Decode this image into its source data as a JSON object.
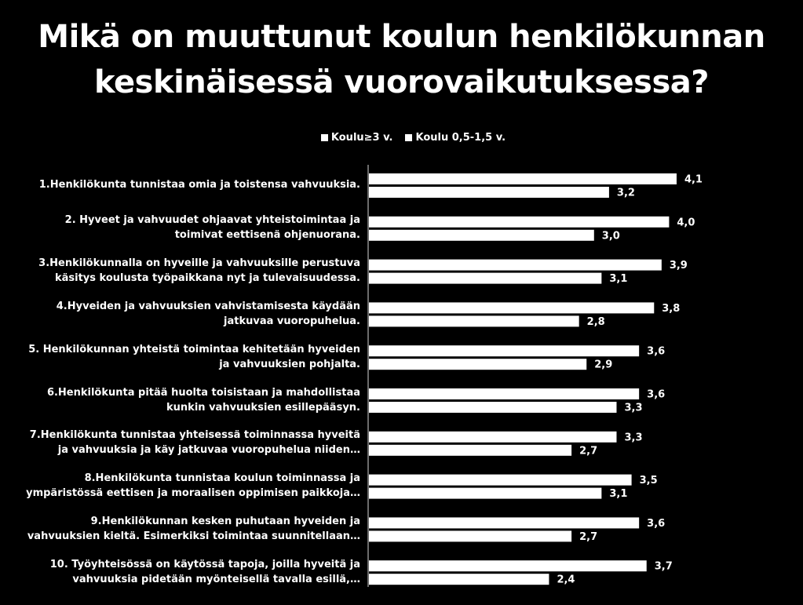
{
  "chart_data": {
    "type": "bar",
    "orientation": "horizontal",
    "title": [
      "Mikä on muuttunut koulun henkilökunnan",
      "keskinäisessä vuorovaikutuksessa?"
    ],
    "legend_position": "top",
    "grid": false,
    "xlim": [
      0,
      5
    ],
    "categories": [
      [
        "1.Henkilökunta tunnistaa omia ja toistensa vahvuuksia."
      ],
      [
        "2. Hyveet ja vahvuudet ohjaavat yhteistoimintaa ja",
        "toimivat eettisenä ohjenuorana."
      ],
      [
        "3.Henkilökunnalla on hyveille ja vahvuuksille perustuva",
        "käsitys koulusta työpaikkana nyt ja tulevaisuudessa."
      ],
      [
        "4.Hyveiden ja vahvuuksien vahvistamisesta käydään",
        "jatkuvaa vuoropuhelua."
      ],
      [
        "5. Henkilökunnan yhteistä toimintaa kehitetään hyveiden",
        "ja vahvuuksien pohjalta."
      ],
      [
        "6.Henkilökunta pitää huolta toisistaan ja mahdollistaa",
        "kunkin vahvuuksien esillepääsyn."
      ],
      [
        "7.Henkilökunta tunnistaa yhteisessä toiminnassa hyveitä",
        "ja vahvuuksia ja käy jatkuvaa vuoropuhelua niiden…"
      ],
      [
        "8.Henkilökunta tunnistaa koulun toiminnassa ja",
        "ympäristössä eettisen ja moraalisen oppimisen paikkoja…"
      ],
      [
        "9.Henkilökunnan kesken puhutaan hyveiden ja",
        "vahvuuksien kieltä. Esimerkiksi toimintaa suunnitellaan…"
      ],
      [
        "10. Työyhteisössä on käytössä tapoja, joilla hyveitä ja",
        "vahvuuksia pidetään myönteisellä tavalla esillä,…"
      ]
    ],
    "series": [
      {
        "name": "Koulu≥3 v.",
        "values": [
          4.1,
          4.0,
          3.9,
          3.8,
          3.6,
          3.6,
          3.3,
          3.5,
          3.6,
          3.7
        ],
        "labels": [
          "4,1",
          "4,0",
          "3,9",
          "3,8",
          "3,6",
          "3,6",
          "3,3",
          "3,5",
          "3,6",
          "3,7"
        ]
      },
      {
        "name": "Koulu 0,5-1,5 v.",
        "values": [
          3.2,
          3.0,
          3.1,
          2.8,
          2.9,
          3.3,
          2.7,
          3.1,
          2.7,
          2.4
        ],
        "labels": [
          "3,2",
          "3,0",
          "3,1",
          "2,8",
          "2,9",
          "3,3",
          "2,7",
          "3,1",
          "2,7",
          "2,4"
        ]
      }
    ],
    "colors": {
      "background": "#000000",
      "bar_fill": "#ffffff",
      "text": "#ffffff",
      "axis": "#d9d9d9"
    }
  }
}
